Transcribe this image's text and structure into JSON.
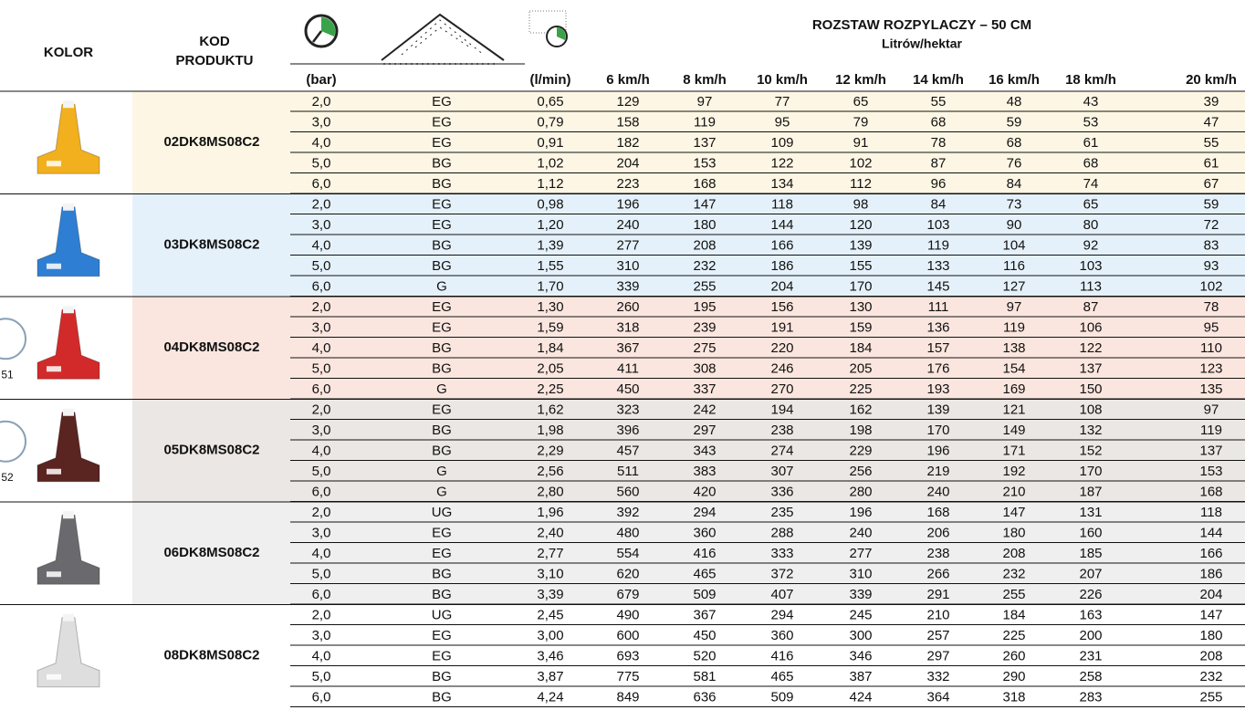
{
  "header": {
    "color_label": "KOLOR",
    "code_label": [
      "KOD",
      "PRODUKTU"
    ],
    "title": "ROZSTAW ROZPYLACZY – 50 CM",
    "subtitle": "Litrów/hektar",
    "pressure_unit": "(bar)",
    "flow_unit": "(l/min)",
    "speeds": [
      "6 km/h",
      "8 km/h",
      "10 km/h",
      "12 km/h",
      "14 km/h",
      "16 km/h",
      "18 km/h",
      "20 km/h"
    ]
  },
  "groups": [
    {
      "code": "02DK8MS08C2",
      "color": "#f2b01e",
      "background": "#fdf6e4",
      "rows": [
        [
          "2,0",
          "EG",
          "0,65",
          "129",
          "97",
          "77",
          "65",
          "55",
          "48",
          "43",
          "39"
        ],
        [
          "3,0",
          "EG",
          "0,79",
          "158",
          "119",
          "95",
          "79",
          "68",
          "59",
          "53",
          "47"
        ],
        [
          "4,0",
          "EG",
          "0,91",
          "182",
          "137",
          "109",
          "91",
          "78",
          "68",
          "61",
          "55"
        ],
        [
          "5,0",
          "BG",
          "1,02",
          "204",
          "153",
          "122",
          "102",
          "87",
          "76",
          "68",
          "61"
        ],
        [
          "6,0",
          "BG",
          "1,12",
          "223",
          "168",
          "134",
          "112",
          "96",
          "84",
          "74",
          "67"
        ]
      ]
    },
    {
      "code": "03DK8MS08C2",
      "color": "#2e7fd3",
      "background": "#e5f1fa",
      "rows": [
        [
          "2,0",
          "EG",
          "0,98",
          "196",
          "147",
          "118",
          "98",
          "84",
          "73",
          "65",
          "59"
        ],
        [
          "3,0",
          "EG",
          "1,20",
          "240",
          "180",
          "144",
          "120",
          "103",
          "90",
          "80",
          "72"
        ],
        [
          "4,0",
          "BG",
          "1,39",
          "277",
          "208",
          "166",
          "139",
          "119",
          "104",
          "92",
          "83"
        ],
        [
          "5,0",
          "BG",
          "1,55",
          "310",
          "232",
          "186",
          "155",
          "133",
          "116",
          "103",
          "93"
        ],
        [
          "6,0",
          "G",
          "1,70",
          "339",
          "255",
          "204",
          "170",
          "145",
          "127",
          "113",
          "102"
        ]
      ]
    },
    {
      "code": "04DK8MS08C2",
      "color": "#d22a2a",
      "background": "#fbe6df",
      "badge": "51",
      "rows": [
        [
          "2,0",
          "EG",
          "1,30",
          "260",
          "195",
          "156",
          "130",
          "111",
          "97",
          "87",
          "78"
        ],
        [
          "3,0",
          "EG",
          "1,59",
          "318",
          "239",
          "191",
          "159",
          "136",
          "119",
          "106",
          "95"
        ],
        [
          "4,0",
          "BG",
          "1,84",
          "367",
          "275",
          "220",
          "184",
          "157",
          "138",
          "122",
          "110"
        ],
        [
          "5,0",
          "BG",
          "2,05",
          "411",
          "308",
          "246",
          "205",
          "176",
          "154",
          "137",
          "123"
        ],
        [
          "6,0",
          "G",
          "2,25",
          "450",
          "337",
          "270",
          "225",
          "193",
          "169",
          "150",
          "135"
        ]
      ]
    },
    {
      "code": "05DK8MS08C2",
      "color": "#5a2420",
      "background": "#ebe7e4",
      "badge": "52",
      "rows": [
        [
          "2,0",
          "EG",
          "1,62",
          "323",
          "242",
          "194",
          "162",
          "139",
          "121",
          "108",
          "97"
        ],
        [
          "3,0",
          "BG",
          "1,98",
          "396",
          "297",
          "238",
          "198",
          "170",
          "149",
          "132",
          "119"
        ],
        [
          "4,0",
          "BG",
          "2,29",
          "457",
          "343",
          "274",
          "229",
          "196",
          "171",
          "152",
          "137"
        ],
        [
          "5,0",
          "G",
          "2,56",
          "511",
          "383",
          "307",
          "256",
          "219",
          "192",
          "170",
          "153"
        ],
        [
          "6,0",
          "G",
          "2,80",
          "560",
          "420",
          "336",
          "280",
          "240",
          "210",
          "187",
          "168"
        ]
      ]
    },
    {
      "code": "06DK8MS08C2",
      "color": "#6a6a6e",
      "background": "#efefef",
      "rows": [
        [
          "2,0",
          "UG",
          "1,96",
          "392",
          "294",
          "235",
          "196",
          "168",
          "147",
          "131",
          "118"
        ],
        [
          "3,0",
          "EG",
          "2,40",
          "480",
          "360",
          "288",
          "240",
          "206",
          "180",
          "160",
          "144"
        ],
        [
          "4,0",
          "EG",
          "2,77",
          "554",
          "416",
          "333",
          "277",
          "238",
          "208",
          "185",
          "166"
        ],
        [
          "5,0",
          "BG",
          "3,10",
          "620",
          "465",
          "372",
          "310",
          "266",
          "232",
          "207",
          "186"
        ],
        [
          "6,0",
          "BG",
          "3,39",
          "679",
          "509",
          "407",
          "339",
          "291",
          "255",
          "226",
          "204"
        ]
      ]
    },
    {
      "code": "08DK8MS08C2",
      "color": "#dedede",
      "background": "#ffffff",
      "rows": [
        [
          "2,0",
          "UG",
          "2,45",
          "490",
          "367",
          "294",
          "245",
          "210",
          "184",
          "163",
          "147"
        ],
        [
          "3,0",
          "EG",
          "3,00",
          "600",
          "450",
          "360",
          "300",
          "257",
          "225",
          "200",
          "180"
        ],
        [
          "4,0",
          "EG",
          "3,46",
          "693",
          "520",
          "416",
          "346",
          "297",
          "260",
          "231",
          "208"
        ],
        [
          "5,0",
          "BG",
          "3,87",
          "775",
          "581",
          "465",
          "387",
          "332",
          "290",
          "258",
          "232"
        ],
        [
          "6,0",
          "BG",
          "4,24",
          "849",
          "636",
          "509",
          "424",
          "364",
          "318",
          "283",
          "255"
        ]
      ]
    }
  ]
}
